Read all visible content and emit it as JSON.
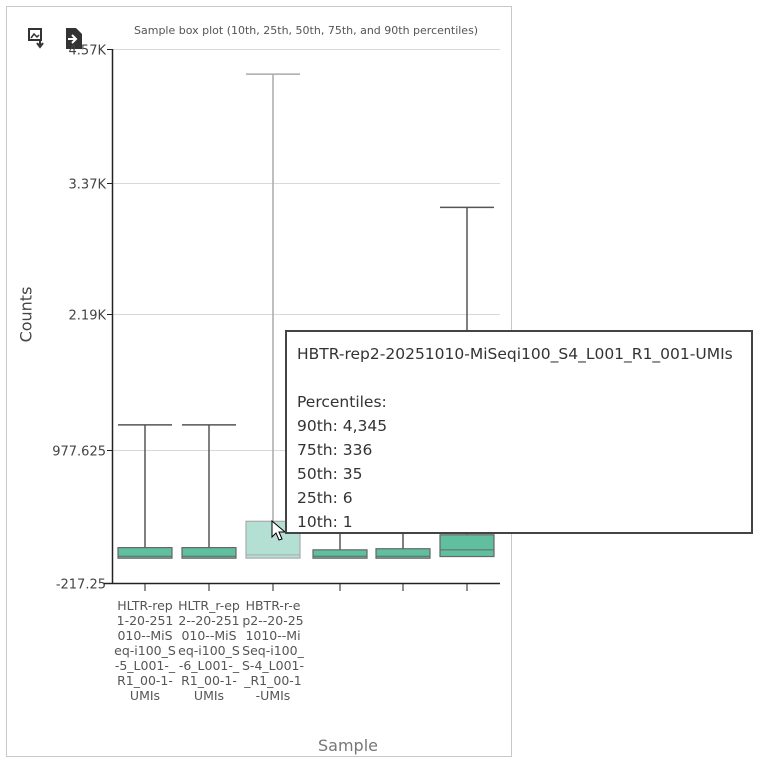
{
  "chart_data": {
    "type": "box",
    "title": "Sample box plot (10th, 25th, 50th, 75th, and 90th percentiles)",
    "ylabel": "Counts",
    "xlabel": "Sample",
    "ylim": [
      -217.25,
      4570
    ],
    "yticks": [
      "-217.25",
      "977.625",
      "2.19K",
      "3.37K",
      "4.57K"
    ],
    "ytick_values": [
      -217.25,
      977.625,
      2190,
      3370,
      4570
    ],
    "grid": true,
    "categories": [
      "HLTR-rep1-20-251010--MiSeq-i100_S-5_L001-_R1_00-1-UMIs",
      "HLTR_r-ep2--20-251010--MiSeq-i100_S-6_L001-_R1_00-1-UMIs",
      "HBTR-r-ep2--20-251010--MiSeq-i100_S-4_L001-_R1_00-1-UMIs",
      "",
      "",
      ""
    ],
    "series": [
      {
        "p10": 1,
        "p25": 5,
        "p50": 20,
        "p75": 100,
        "p90": 1200
      },
      {
        "p10": 1,
        "p25": 5,
        "p50": 20,
        "p75": 100,
        "p90": 1200
      },
      {
        "p10": 1,
        "p25": 6,
        "p50": 35,
        "p75": 336,
        "p90": 4345
      },
      {
        "p10": 1,
        "p25": 5,
        "p50": 20,
        "p75": 80,
        "p90": 960
      },
      {
        "p10": 1,
        "p25": 5,
        "p50": 20,
        "p75": 90,
        "p90": 1350
      },
      {
        "p10": 1,
        "p25": 20,
        "p50": 80,
        "p75": 215,
        "p90": 3150
      }
    ],
    "colors": {
      "box": "#5fbf9f",
      "box_hover": "#b3e0d2",
      "whisker": "#555555",
      "whisker_hover": "#aaaaaa"
    }
  },
  "tooltip": {
    "name": "HBTR-rep2-20251010-MiSeqi100_S4_L001_R1_001-UMIs",
    "heading": "Percentiles:",
    "lines": [
      "90th: 4,345",
      "75th: 336",
      "50th: 35",
      "25th: 6",
      "10th: 1"
    ]
  }
}
